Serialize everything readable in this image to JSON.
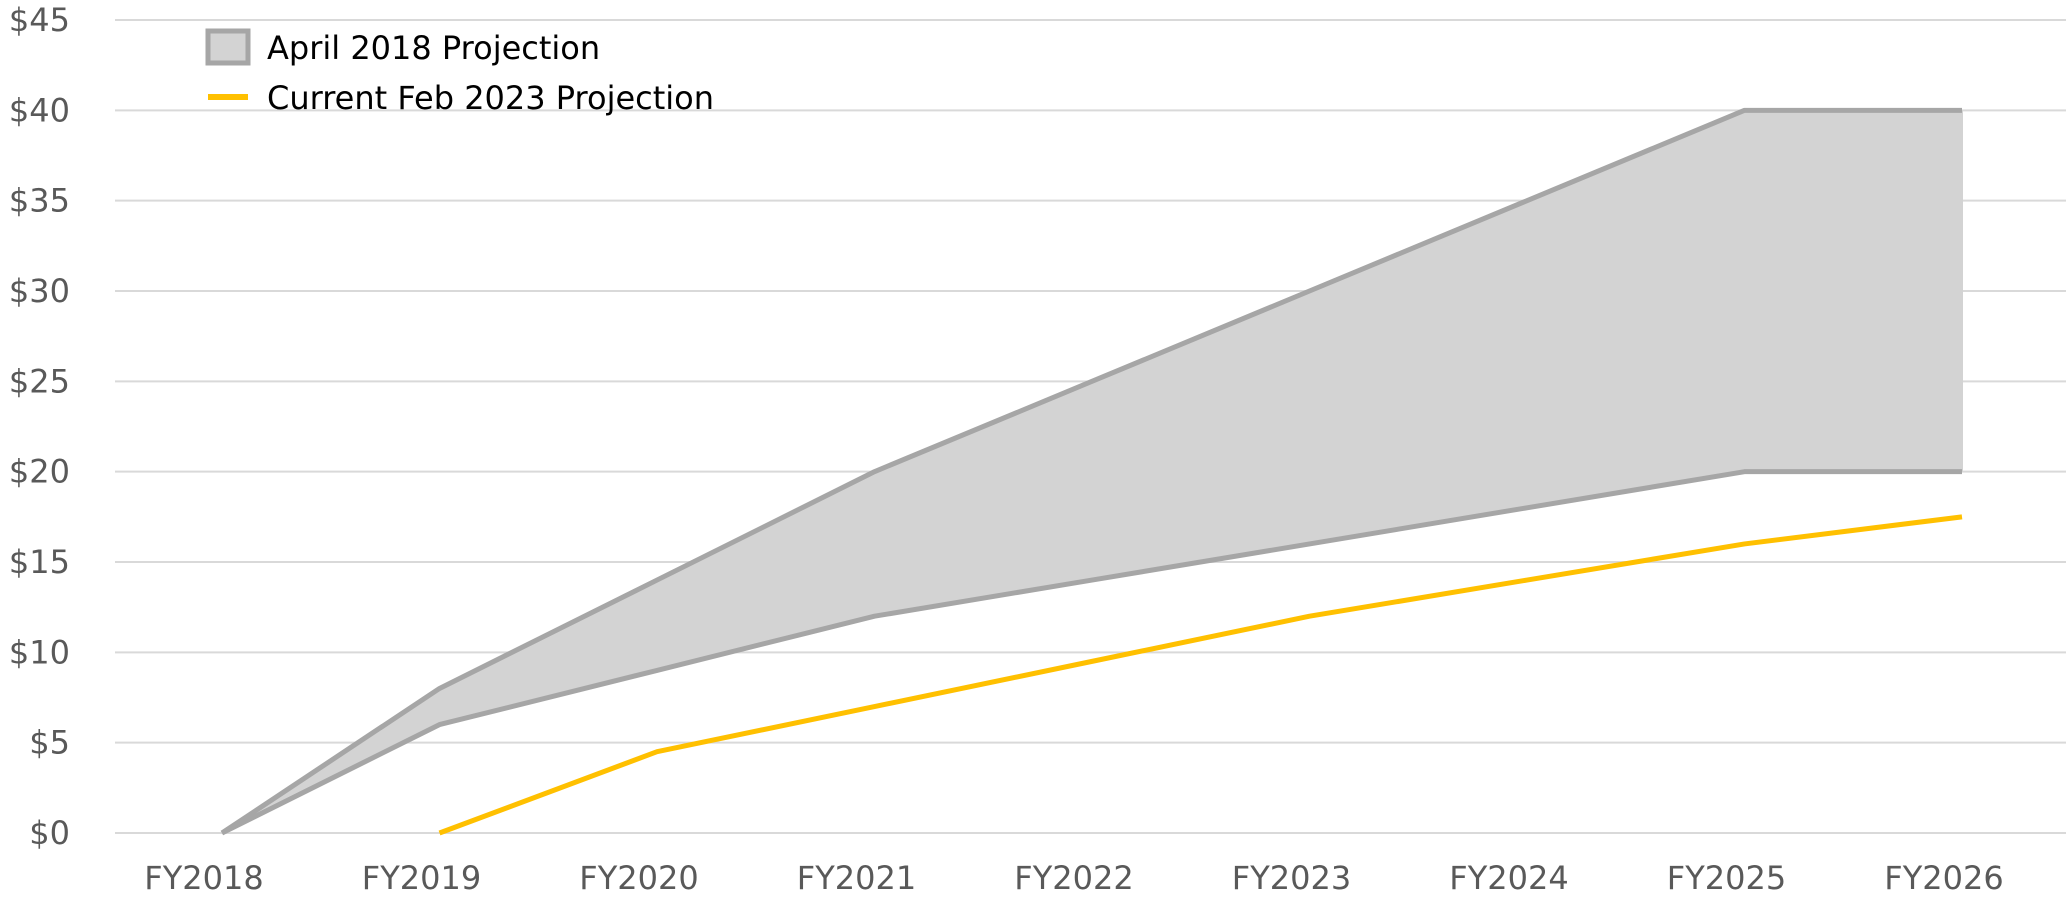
{
  "chart_data": {
    "type": "area",
    "categories": [
      "FY2018",
      "FY2019",
      "FY2020",
      "FY2021",
      "FY2022",
      "FY2023",
      "FY2024",
      "FY2025",
      "FY2026"
    ],
    "ylim": [
      0,
      45
    ],
    "y_ticks": [
      "$0",
      "$5",
      "$10",
      "$15",
      "$20",
      "$25",
      "$30",
      "$35",
      "$40",
      "$45"
    ],
    "y_tick_values": [
      0,
      5,
      10,
      15,
      20,
      25,
      30,
      35,
      40,
      45
    ],
    "grid": true,
    "legend_position": "top-left",
    "series": [
      {
        "name": "April 2018 Projection",
        "kind": "band",
        "color": "#a6a6a6",
        "fill": "#d3d3d3",
        "upper": [
          0,
          8,
          14,
          20,
          25,
          30,
          35,
          40,
          40
        ],
        "lower": [
          0,
          6,
          9,
          12,
          14,
          16,
          18,
          20,
          20
        ]
      },
      {
        "name": "Current Feb 2023 Projection",
        "kind": "line",
        "color": "#ffc000",
        "values": [
          null,
          0,
          4.5,
          7,
          9.5,
          12,
          14,
          16,
          17.5
        ]
      }
    ]
  }
}
